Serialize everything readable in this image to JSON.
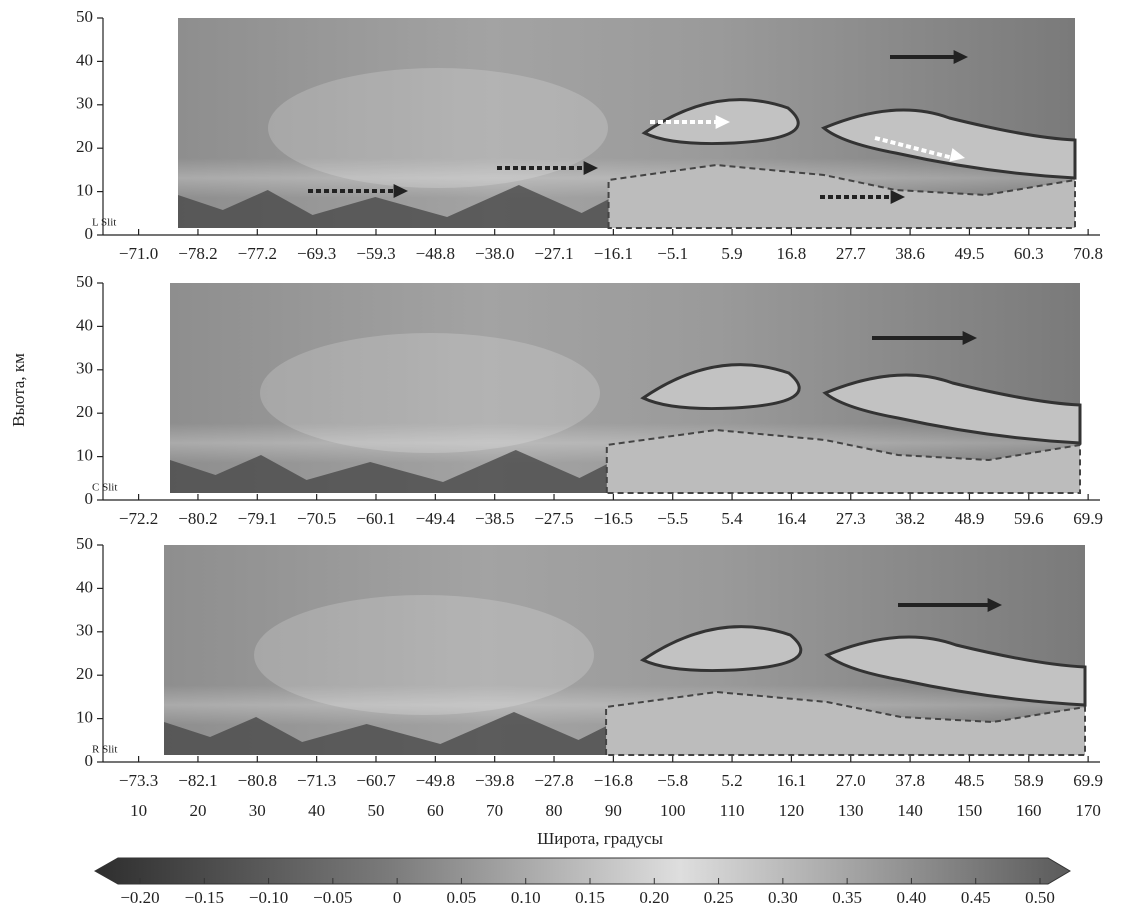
{
  "chart_data": {
    "type": "heatmap",
    "y_label": "Выота, км",
    "x_label": "Широта, градусы",
    "xlim": [
      4,
      172
    ],
    "xticks": [
      10,
      20,
      30,
      40,
      50,
      60,
      70,
      80,
      90,
      100,
      110,
      120,
      130,
      140,
      150,
      160,
      170
    ],
    "ylim": [
      0,
      50
    ],
    "yticks": [
      0,
      10,
      20,
      30,
      40,
      50
    ],
    "panels": [
      {
        "label": "L Slit",
        "lat_ticks": [
          {
            "value": 10,
            "label": "−71.0"
          },
          {
            "value": 20,
            "label": "−78.2"
          },
          {
            "value": 30,
            "label": "−77.2"
          },
          {
            "value": 40,
            "label": "−69.3"
          },
          {
            "value": 50,
            "label": "−59.3"
          },
          {
            "value": 60,
            "label": "−48.8"
          },
          {
            "value": 70,
            "label": "−38.0"
          },
          {
            "value": 80,
            "label": "−27.1"
          },
          {
            "value": 90,
            "label": "−16.1"
          },
          {
            "value": 100,
            "label": "−5.1"
          },
          {
            "value": 110,
            "label": "5.9"
          },
          {
            "value": 120,
            "label": "16.8"
          },
          {
            "value": 130,
            "label": "27.7"
          },
          {
            "value": 140,
            "label": "38.6"
          },
          {
            "value": 150,
            "label": "49.5"
          },
          {
            "value": 160,
            "label": "60.3"
          },
          {
            "value": 170,
            "label": "70.8"
          }
        ]
      },
      {
        "label": "C Slit",
        "lat_ticks": [
          {
            "value": 10,
            "label": "−72.2"
          },
          {
            "value": 20,
            "label": "−80.2"
          },
          {
            "value": 30,
            "label": "−79.1"
          },
          {
            "value": 40,
            "label": "−70.5"
          },
          {
            "value": 50,
            "label": "−60.1"
          },
          {
            "value": 60,
            "label": "−49.4"
          },
          {
            "value": 70,
            "label": "−38.5"
          },
          {
            "value": 80,
            "label": "−27.5"
          },
          {
            "value": 90,
            "label": "−16.5"
          },
          {
            "value": 100,
            "label": "−5.5"
          },
          {
            "value": 110,
            "label": "5.4"
          },
          {
            "value": 120,
            "label": "16.4"
          },
          {
            "value": 130,
            "label": "27.3"
          },
          {
            "value": 140,
            "label": "38.2"
          },
          {
            "value": 150,
            "label": "48.9"
          },
          {
            "value": 160,
            "label": "59.6"
          },
          {
            "value": 170,
            "label": "69.9"
          }
        ]
      },
      {
        "label": "R Slit",
        "lat_ticks": [
          {
            "value": 10,
            "label": "−73.3"
          },
          {
            "value": 20,
            "label": "−82.1"
          },
          {
            "value": 30,
            "label": "−80.8"
          },
          {
            "value": 40,
            "label": "−71.3"
          },
          {
            "value": 50,
            "label": "−60.7"
          },
          {
            "value": 60,
            "label": "−49.8"
          },
          {
            "value": 70,
            "label": "−39.8"
          },
          {
            "value": 80,
            "label": "−27.8"
          },
          {
            "value": 90,
            "label": "−16.8"
          },
          {
            "value": 100,
            "label": "−5.8"
          },
          {
            "value": 110,
            "label": "5.2"
          },
          {
            "value": 120,
            "label": "16.1"
          },
          {
            "value": 130,
            "label": "27.0"
          },
          {
            "value": 140,
            "label": "37.8"
          },
          {
            "value": 150,
            "label": "48.5"
          },
          {
            "value": 160,
            "label": "58.9"
          },
          {
            "value": 170,
            "label": "69.9"
          }
        ]
      }
    ],
    "colorbar": {
      "ticks": [
        {
          "value": -0.2,
          "label": "−0.20"
        },
        {
          "value": -0.15,
          "label": "−0.15"
        },
        {
          "value": -0.1,
          "label": "−0.10"
        },
        {
          "value": -0.05,
          "label": "−0.05"
        },
        0,
        0.05,
        {
          "value": 0.1,
          "label": "0.10"
        },
        0.15,
        {
          "value": 0.2,
          "label": "0.20"
        },
        0.25,
        {
          "value": 0.3,
          "label": "0.30"
        },
        0.35,
        {
          "value": 0.4,
          "label": "0.40"
        },
        0.45,
        {
          "value": 0.5,
          "label": "0.50"
        }
      ]
    }
  }
}
